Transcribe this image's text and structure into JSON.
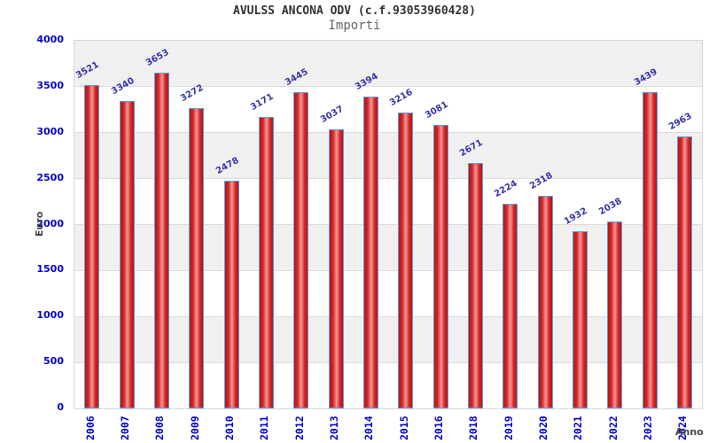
{
  "header": {
    "title": "AVULSS ANCONA ODV (c.f.93053960428)",
    "subtitle": "Importi"
  },
  "chart_data": {
    "type": "bar",
    "title": "AVULSS ANCONA ODV (c.f.93053960428)",
    "subtitle": "Importi",
    "xlabel": "Anno",
    "ylabel": "Euro",
    "categories": [
      "2006",
      "2007",
      "2008",
      "2009",
      "2010",
      "2011",
      "2012",
      "2013",
      "2014",
      "2015",
      "2016",
      "2018",
      "2019",
      "2020",
      "2021",
      "2022",
      "2023",
      "2024"
    ],
    "values": [
      3521,
      3340,
      3653,
      3272,
      2478,
      3171,
      3445,
      3037,
      3394,
      3216,
      3081,
      2671,
      2224,
      2318,
      1932,
      2038,
      3439,
      2963
    ],
    "ylim": [
      0,
      4000
    ],
    "y_ticks": [
      0,
      500,
      1000,
      1500,
      2000,
      2500,
      3000,
      3500,
      4000
    ],
    "grid": true,
    "alternating_bands": true,
    "legend": "none",
    "colors": {
      "axis_label": "#0000cc",
      "value_label": "#3333aa",
      "bar_border": "#5e9ce0",
      "bar_gradient": [
        "#b01818",
        "#d42424",
        "#f29898",
        "#d42424",
        "#b01818"
      ],
      "band": "#f0f0f1",
      "band_alt": "#ffffff",
      "gridline": "#dcdcdc",
      "plot_border": "#d6d6d6",
      "title": "#333333",
      "subtitle": "#666666",
      "axis_title": "#444444"
    }
  }
}
